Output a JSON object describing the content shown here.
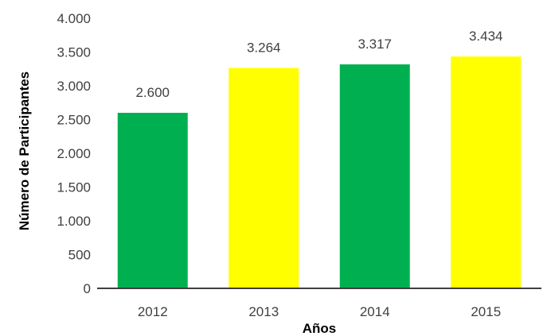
{
  "chart_data": {
    "type": "bar",
    "categories": [
      "2012",
      "2013",
      "2014",
      "2015"
    ],
    "values": [
      2600,
      3264,
      3317,
      3434
    ],
    "value_labels": [
      "2.600",
      "3.264",
      "3.317",
      "3.434"
    ],
    "bar_colors": [
      "#00b050",
      "#ffff00",
      "#00b050",
      "#ffff00"
    ],
    "xlabel": "Años",
    "ylabel": "Número de Participantes",
    "ylim": [
      0,
      4000
    ],
    "yticks": [
      0,
      500,
      1000,
      1500,
      2000,
      2500,
      3000,
      3500,
      4000
    ],
    "ytick_labels": [
      "0",
      "500",
      "1.000",
      "1.500",
      "2.000",
      "2.500",
      "3.000",
      "3.500",
      "4.000"
    ],
    "grid": false,
    "legend": "none",
    "axis_color": "#404040"
  }
}
